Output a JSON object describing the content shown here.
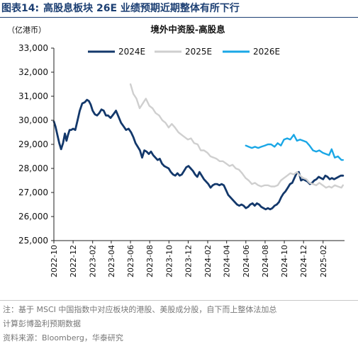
{
  "figure": {
    "label": "图表14:",
    "title": "高股息板块 26E 业绩预期近期整体有所下行",
    "note_line1": "注：基于 MSCI 中国指数中对应板块的港股、美股成分股，自下而上整体法加总",
    "note_line2": "计算彭博盈利预期数据",
    "source": "资料来源：Bloomberg，华泰研究"
  },
  "colors": {
    "title": "#1c3f73",
    "axis": "#222222",
    "note": "#777777"
  },
  "chart_data": {
    "type": "line",
    "title": "境外中资股-高股息",
    "unit_label": "（亿港币）",
    "xlabel": "",
    "ylabel": "",
    "ylim": [
      25000,
      33000
    ],
    "yticks": [
      "25,000",
      "26,000",
      "27,000",
      "28,000",
      "29,000",
      "30,000",
      "31,000",
      "32,000",
      "33,000"
    ],
    "x_range": [
      "2022-10-01",
      "2025-04-10"
    ],
    "xticks": [
      "2022-10",
      "2022-12",
      "2023-02",
      "2023-04",
      "2023-06",
      "2023-08",
      "2023-10",
      "2023-12",
      "2024-02",
      "2024-04",
      "2024-06",
      "2024-08",
      "2024-10",
      "2024-12",
      "2025-02"
    ],
    "grid": false,
    "legend_position": "top",
    "series": [
      {
        "name": "2024E",
        "color": "#13386b",
        "x": [
          "2022-10-01",
          "2022-10-06",
          "2022-10-12",
          "2022-10-18",
          "2022-10-24",
          "2022-10-30",
          "2022-11-05",
          "2022-11-10",
          "2022-11-15",
          "2022-11-20",
          "2022-11-25",
          "2022-12-01",
          "2022-12-08",
          "2022-12-15",
          "2022-12-22",
          "2022-12-30",
          "2023-01-07",
          "2023-01-14",
          "2023-01-20",
          "2023-01-26",
          "2023-02-01",
          "2023-02-08",
          "2023-02-15",
          "2023-02-22",
          "2023-03-01",
          "2023-03-08",
          "2023-03-15",
          "2023-03-22",
          "2023-03-30",
          "2023-04-08",
          "2023-04-16",
          "2023-04-24",
          "2023-05-02",
          "2023-05-10",
          "2023-05-18",
          "2023-05-26",
          "2023-06-03",
          "2023-06-10",
          "2023-06-17",
          "2023-06-24",
          "2023-07-01",
          "2023-07-08",
          "2023-07-15",
          "2023-07-22",
          "2023-07-29",
          "2023-08-05",
          "2023-08-12",
          "2023-08-19",
          "2023-08-26",
          "2023-09-02",
          "2023-09-09",
          "2023-09-16",
          "2023-09-23",
          "2023-09-30",
          "2023-10-07",
          "2023-10-14",
          "2023-10-21",
          "2023-10-28",
          "2023-11-04",
          "2023-11-11",
          "2023-11-18",
          "2023-11-25",
          "2023-12-02",
          "2023-12-09",
          "2023-12-16",
          "2023-12-23",
          "2023-12-30",
          "2024-01-06",
          "2024-01-13",
          "2024-01-20",
          "2024-01-27",
          "2024-02-03",
          "2024-02-10",
          "2024-02-17",
          "2024-02-24",
          "2024-03-02",
          "2024-03-09",
          "2024-03-16",
          "2024-03-23",
          "2024-03-30",
          "2024-04-06",
          "2024-04-13",
          "2024-04-20",
          "2024-04-27",
          "2024-05-04",
          "2024-05-11",
          "2024-05-18",
          "2024-05-25",
          "2024-06-01",
          "2024-06-08",
          "2024-06-15",
          "2024-06-22",
          "2024-06-29",
          "2024-07-06",
          "2024-07-13",
          "2024-07-20",
          "2024-07-27",
          "2024-08-03",
          "2024-08-10",
          "2024-08-17",
          "2024-08-24",
          "2024-08-31",
          "2024-09-07",
          "2024-09-14",
          "2024-09-21",
          "2024-09-28",
          "2024-10-05",
          "2024-10-12",
          "2024-10-19",
          "2024-10-26",
          "2024-11-02",
          "2024-11-09",
          "2024-11-16",
          "2024-11-23",
          "2024-11-30",
          "2024-12-07",
          "2024-12-14",
          "2024-12-21",
          "2024-12-28",
          "2025-01-04",
          "2025-01-11",
          "2025-01-18",
          "2025-01-25",
          "2025-02-01",
          "2025-02-08",
          "2025-02-15",
          "2025-02-22",
          "2025-03-01",
          "2025-03-08",
          "2025-03-15",
          "2025-03-22",
          "2025-03-29",
          "2025-04-05"
        ],
        "y": [
          29950,
          29750,
          29400,
          29050,
          28800,
          29050,
          29450,
          29150,
          29400,
          29600,
          29600,
          29650,
          29600,
          30000,
          30400,
          30700,
          30750,
          30850,
          30800,
          30650,
          30400,
          30250,
          30200,
          30300,
          30450,
          30400,
          30200,
          30200,
          30100,
          30250,
          30400,
          30150,
          29900,
          29750,
          29600,
          29650,
          29500,
          29300,
          29050,
          28900,
          28750,
          28450,
          28750,
          28700,
          28600,
          28700,
          28550,
          28450,
          28350,
          28400,
          28200,
          28100,
          28050,
          28000,
          27850,
          27750,
          27700,
          27800,
          27700,
          27750,
          27900,
          28050,
          28100,
          28000,
          27900,
          27750,
          27650,
          27850,
          27700,
          27550,
          27450,
          27350,
          27200,
          27300,
          27350,
          27350,
          27300,
          27350,
          27300,
          27100,
          26900,
          26800,
          26700,
          26600,
          26500,
          26450,
          26500,
          26450,
          26350,
          26400,
          26500,
          26550,
          26450,
          26550,
          26500,
          26400,
          26350,
          26300,
          26350,
          26300,
          26350,
          26450,
          26500,
          26600,
          26800,
          26950,
          27050,
          27200,
          27350,
          27400,
          27600,
          27800,
          27850,
          27500,
          27550,
          27500,
          27450,
          27350,
          27400,
          27500,
          27550,
          27650,
          27600,
          27550,
          27700,
          27650,
          27550,
          27600,
          27550,
          27600,
          27650,
          27700,
          27700
        ]
      },
      {
        "name": "2025E",
        "color": "#cfcfcf",
        "x": [
          "2023-06-01",
          "2023-06-10",
          "2023-06-20",
          "2023-06-30",
          "2023-07-10",
          "2023-07-20",
          "2023-07-31",
          "2023-08-10",
          "2023-08-20",
          "2023-08-31",
          "2023-09-10",
          "2023-09-20",
          "2023-09-30",
          "2023-10-10",
          "2023-10-20",
          "2023-10-31",
          "2023-11-10",
          "2023-11-20",
          "2023-11-30",
          "2023-12-10",
          "2023-12-20",
          "2023-12-31",
          "2024-01-10",
          "2024-01-20",
          "2024-01-31",
          "2024-02-10",
          "2024-02-20",
          "2024-02-29",
          "2024-03-10",
          "2024-03-20",
          "2024-03-31",
          "2024-04-10",
          "2024-04-20",
          "2024-04-30",
          "2024-05-10",
          "2024-05-20",
          "2024-05-31",
          "2024-06-10",
          "2024-06-20",
          "2024-06-30",
          "2024-07-10",
          "2024-07-20",
          "2024-07-31",
          "2024-08-10",
          "2024-08-20",
          "2024-08-31",
          "2024-09-10",
          "2024-09-20",
          "2024-09-30",
          "2024-10-10",
          "2024-10-20",
          "2024-10-31",
          "2024-11-10",
          "2024-11-20",
          "2024-11-30",
          "2024-12-10",
          "2024-12-20",
          "2024-12-31",
          "2025-01-10",
          "2025-01-20",
          "2025-01-31",
          "2025-02-10",
          "2025-02-20",
          "2025-02-28",
          "2025-03-10",
          "2025-03-20",
          "2025-03-31",
          "2025-04-05"
        ],
        "y": [
          31500,
          31100,
          30900,
          30500,
          30700,
          30900,
          30600,
          30500,
          30300,
          30200,
          30000,
          29900,
          29700,
          29850,
          29700,
          29500,
          29400,
          29300,
          29200,
          29250,
          29050,
          29000,
          28750,
          28750,
          28650,
          28500,
          28450,
          28400,
          28300,
          28300,
          28200,
          28100,
          28150,
          28000,
          27950,
          27800,
          27600,
          27500,
          27350,
          27400,
          27300,
          27250,
          27300,
          27300,
          27250,
          27250,
          27300,
          27500,
          27600,
          27700,
          27800,
          27750,
          27850,
          27700,
          27600,
          27550,
          27400,
          27350,
          27300,
          27400,
          27300,
          27200,
          27250,
          27200,
          27300,
          27250,
          27200,
          27300
        ]
      },
      {
        "name": "2026E",
        "color": "#1aa7e6",
        "x": [
          "2024-06-01",
          "2024-06-10",
          "2024-06-20",
          "2024-06-30",
          "2024-07-10",
          "2024-07-20",
          "2024-07-31",
          "2024-08-10",
          "2024-08-20",
          "2024-08-31",
          "2024-09-10",
          "2024-09-20",
          "2024-09-30",
          "2024-10-10",
          "2024-10-20",
          "2024-10-31",
          "2024-11-10",
          "2024-11-20",
          "2024-11-30",
          "2024-12-10",
          "2024-12-20",
          "2024-12-31",
          "2025-01-10",
          "2025-01-20",
          "2025-01-31",
          "2025-02-10",
          "2025-02-20",
          "2025-02-28",
          "2025-03-10",
          "2025-03-20",
          "2025-03-31",
          "2025-04-05"
        ],
        "y": [
          28950,
          28900,
          28850,
          28900,
          28850,
          28900,
          28950,
          29000,
          29000,
          28900,
          29050,
          28950,
          29200,
          29250,
          29200,
          29400,
          29150,
          29200,
          29150,
          29100,
          28950,
          28750,
          28700,
          28750,
          28650,
          28600,
          28550,
          28800,
          28450,
          28500,
          28350,
          28350
        ]
      }
    ]
  }
}
